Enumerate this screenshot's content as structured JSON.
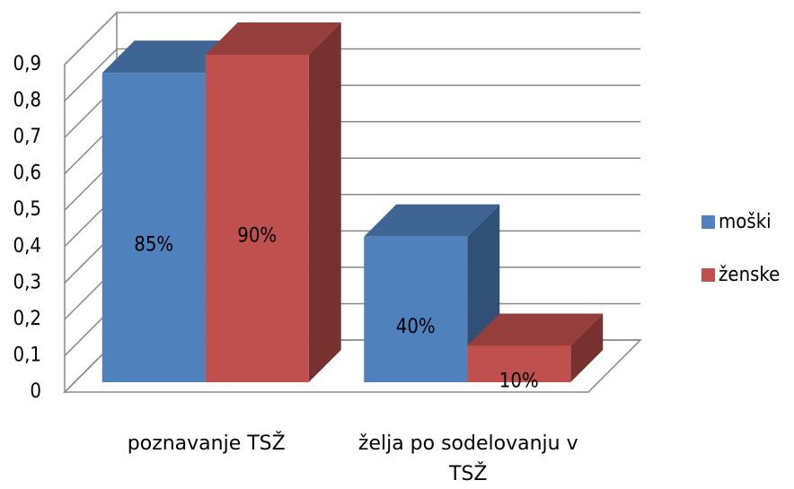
{
  "chart_data": {
    "type": "bar3d",
    "categories": [
      "poznavanje TSŽ",
      "želja po sodelovanju v TSŽ"
    ],
    "series": [
      {
        "name": "moški",
        "color": "#4f81bd",
        "values": [
          0.85,
          0.4
        ],
        "value_labels": [
          "85%",
          "40%"
        ]
      },
      {
        "name": "ženske",
        "color": "#c0504d",
        "values": [
          0.9,
          0.1
        ],
        "value_labels": [
          "90%",
          "10%"
        ]
      }
    ],
    "ylim": [
      0,
      0.9
    ],
    "yticks": [
      0,
      {
        "value": 0.1,
        "label": "0,1"
      },
      {
        "value": 0.2,
        "label": "0,2"
      },
      {
        "value": 0.3,
        "label": "0,3"
      },
      {
        "value": 0.4,
        "label": "0,4"
      },
      {
        "value": 0.5,
        "label": "0,5"
      },
      {
        "value": 0.6,
        "label": "0,6"
      },
      {
        "value": 0.7,
        "label": "0,7"
      },
      {
        "value": 0.8,
        "label": "0,8"
      },
      {
        "value": 0.9,
        "label": "0,9"
      }
    ],
    "grid": true,
    "legend": "right"
  }
}
